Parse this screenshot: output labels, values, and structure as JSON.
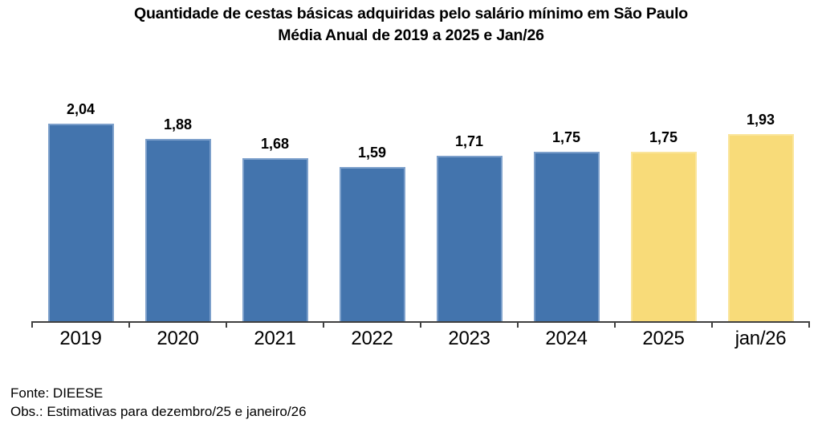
{
  "title": {
    "line1": "Quantidade de cestas básicas adquiridas pelo salário mínimo em São Paulo",
    "line2": "Média Anual de 2019 a 2025 e Jan/26"
  },
  "chart_data": {
    "type": "bar",
    "title": "Quantidade de cestas básicas adquiridas pelo salário mínimo em São Paulo — Média Anual de 2019 a 2025 e Jan/26",
    "categories": [
      "2019",
      "2020",
      "2021",
      "2022",
      "2023",
      "2024",
      "2025",
      "jan/26"
    ],
    "values": [
      2.04,
      1.88,
      1.68,
      1.59,
      1.71,
      1.75,
      1.75,
      1.93
    ],
    "value_labels": [
      "2,04",
      "1,88",
      "1,68",
      "1,59",
      "1,71",
      "1,75",
      "1,75",
      "1,93"
    ],
    "bar_styles": [
      "historical",
      "historical",
      "historical",
      "historical",
      "historical",
      "historical",
      "estimate",
      "estimate"
    ],
    "series_colors": {
      "historical": "#4374ad",
      "estimate": "#f8db79"
    },
    "xlabel": "",
    "ylabel": "",
    "ylim": [
      0,
      2.33
    ],
    "grid": false,
    "legend": false,
    "axis_color": "#404040"
  },
  "footer": {
    "source": "Fonte: DIEESE",
    "note": "Obs.: Estimativas para dezembro/25 e janeiro/26"
  }
}
